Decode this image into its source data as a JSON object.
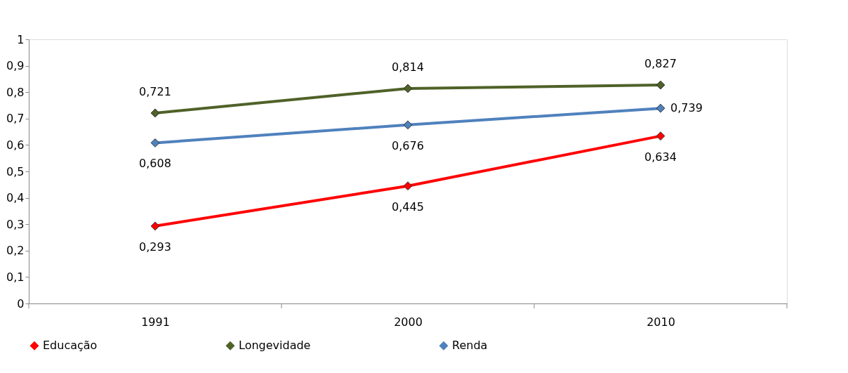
{
  "chart_data": {
    "type": "line",
    "categories": [
      "1991",
      "2000",
      "2010"
    ],
    "series": [
      {
        "name": "Educação",
        "color": "#ff0000",
        "values": [
          0.293,
          0.445,
          0.634
        ],
        "value_labels": [
          "0,293",
          "0,445",
          "0,634"
        ]
      },
      {
        "name": "Longevidade",
        "color": "#4f6228",
        "values": [
          0.721,
          0.814,
          0.827
        ],
        "value_labels": [
          "0,721",
          "0,814",
          "0,827"
        ]
      },
      {
        "name": "Renda",
        "color": "#4f81bd",
        "values": [
          0.608,
          0.676,
          0.739
        ],
        "value_labels": [
          "0,608",
          "0,676",
          "0,739"
        ]
      }
    ],
    "ylim": [
      0,
      1
    ],
    "yticks": [
      {
        "value": 0,
        "label": "0"
      },
      {
        "value": 0.1,
        "label": "0,1"
      },
      {
        "value": 0.2,
        "label": "0,2"
      },
      {
        "value": 0.3,
        "label": "0,3"
      },
      {
        "value": 0.4,
        "label": "0,4"
      },
      {
        "value": 0.5,
        "label": "0,5"
      },
      {
        "value": 0.6,
        "label": "0,6"
      },
      {
        "value": 0.7,
        "label": "0,7"
      },
      {
        "value": 0.8,
        "label": "0,8"
      },
      {
        "value": 0.9,
        "label": "0,9"
      },
      {
        "value": 1,
        "label": "1"
      }
    ],
    "grid": false,
    "legend": "bottom",
    "marker": "diamond",
    "line_style": "solid"
  }
}
